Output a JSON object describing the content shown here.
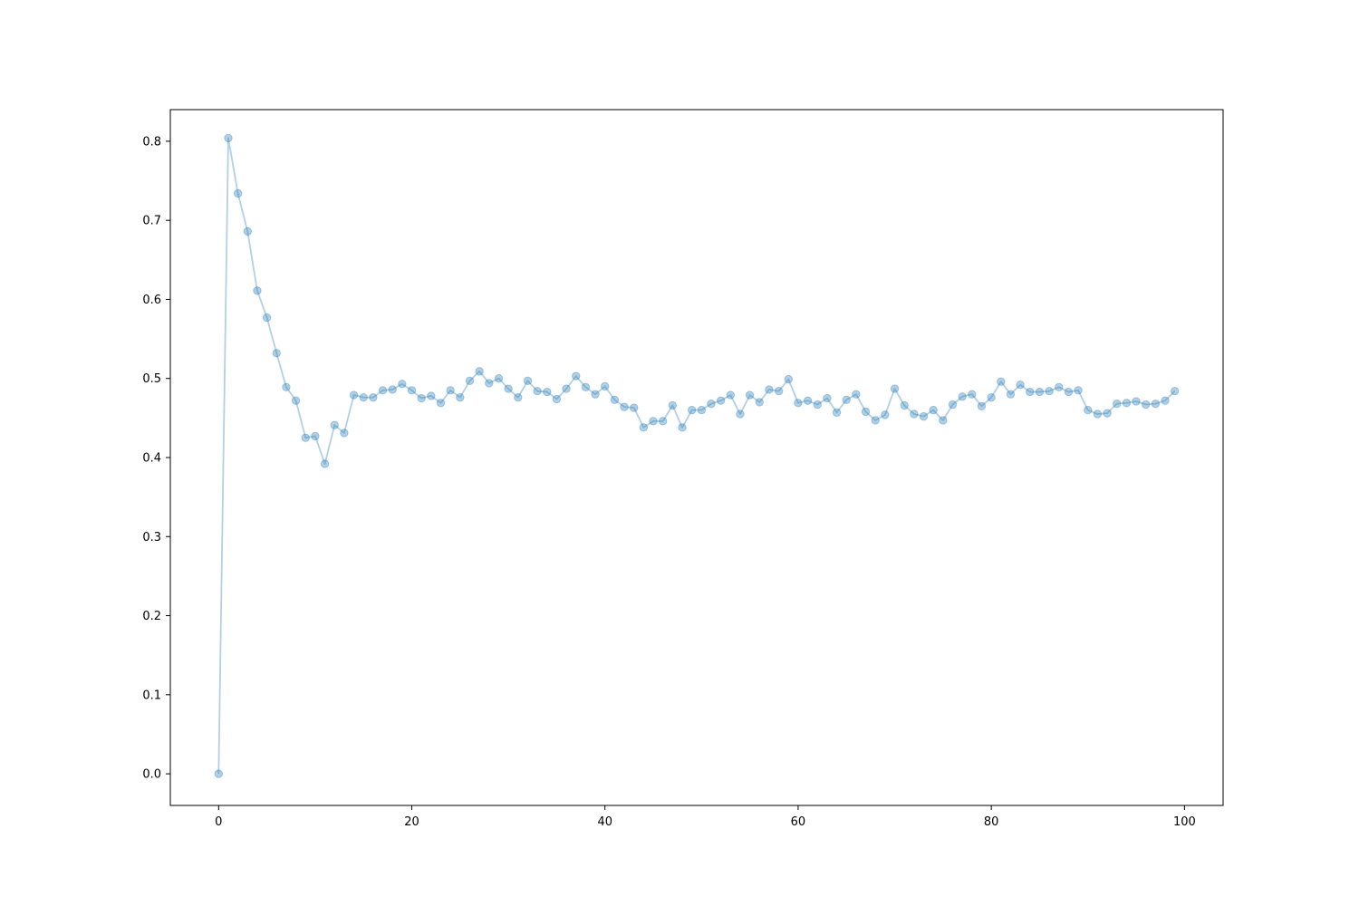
{
  "chart_data": {
    "type": "line",
    "title": "",
    "xlabel": "",
    "ylabel": "",
    "xlim": [
      -5,
      104
    ],
    "ylim": [
      -0.04,
      0.84
    ],
    "xticks": [
      0,
      20,
      40,
      60,
      80,
      100
    ],
    "yticks": [
      0.0,
      0.1,
      0.2,
      0.3,
      0.4,
      0.5,
      0.6,
      0.7,
      0.8
    ],
    "xtick_labels": [
      "0",
      "20",
      "40",
      "60",
      "80",
      "100"
    ],
    "ytick_labels": [
      "0.0",
      "0.1",
      "0.2",
      "0.3",
      "0.4",
      "0.5",
      "0.6",
      "0.7",
      "0.8"
    ],
    "grid": false,
    "legend": "none",
    "series": [
      {
        "color": "#1f77b4",
        "alpha": 0.35,
        "marker": "circle",
        "x": [
          0,
          1,
          2,
          3,
          4,
          5,
          6,
          7,
          8,
          9,
          10,
          11,
          12,
          13,
          14,
          15,
          16,
          17,
          18,
          19,
          20,
          21,
          22,
          23,
          24,
          25,
          26,
          27,
          28,
          29,
          30,
          31,
          32,
          33,
          34,
          35,
          36,
          37,
          38,
          39,
          40,
          41,
          42,
          43,
          44,
          45,
          46,
          47,
          48,
          49,
          50,
          51,
          52,
          53,
          54,
          55,
          56,
          57,
          58,
          59,
          60,
          61,
          62,
          63,
          64,
          65,
          66,
          67,
          68,
          69,
          70,
          71,
          72,
          73,
          74,
          75,
          76,
          77,
          78,
          79,
          80,
          81,
          82,
          83,
          84,
          85,
          86,
          87,
          88,
          89,
          90,
          91,
          92,
          93,
          94,
          95,
          96,
          97,
          98,
          99
        ],
        "y": [
          0.0,
          0.804,
          0.734,
          0.686,
          0.611,
          0.577,
          0.532,
          0.489,
          0.472,
          0.425,
          0.427,
          0.392,
          0.441,
          0.431,
          0.479,
          0.476,
          0.476,
          0.485,
          0.486,
          0.493,
          0.485,
          0.475,
          0.478,
          0.469,
          0.485,
          0.476,
          0.497,
          0.509,
          0.494,
          0.5,
          0.487,
          0.476,
          0.497,
          0.484,
          0.483,
          0.474,
          0.487,
          0.503,
          0.489,
          0.48,
          0.49,
          0.473,
          0.464,
          0.463,
          0.438,
          0.446,
          0.446,
          0.466,
          0.438,
          0.46,
          0.46,
          0.468,
          0.472,
          0.479,
          0.455,
          0.479,
          0.47,
          0.486,
          0.484,
          0.499,
          0.469,
          0.472,
          0.467,
          0.475,
          0.457,
          0.473,
          0.48,
          0.458,
          0.447,
          0.454,
          0.487,
          0.466,
          0.455,
          0.452,
          0.46,
          0.447,
          0.467,
          0.477,
          0.48,
          0.465,
          0.476,
          0.496,
          0.48,
          0.492,
          0.483,
          0.483,
          0.484,
          0.489,
          0.483,
          0.485,
          0.46,
          0.455,
          0.456,
          0.468,
          0.469,
          0.471,
          0.467,
          0.468,
          0.472,
          0.484
        ]
      }
    ]
  }
}
